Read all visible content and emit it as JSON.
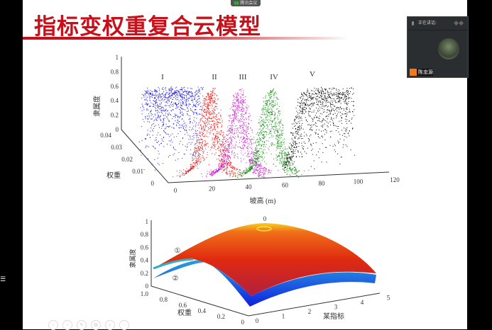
{
  "meeting_bar": {
    "label": "腾讯会议"
  },
  "slide": {
    "title": "指标变权重复合云模型"
  },
  "speaker_panel": {
    "status": "正在讲话:",
    "name": "陈忠源"
  },
  "figure_top": {
    "z_label": "隶属度",
    "z_ticks": [
      "0",
      "0.2",
      "0.4",
      "0.6",
      "0.8",
      "1"
    ],
    "y_label": "权重",
    "y_ticks": [
      "0",
      "0.01",
      "0.02",
      "0.03",
      "0.04"
    ],
    "x_label": "坡高 (m)",
    "x_ticks": [
      "0",
      "20",
      "40",
      "60",
      "80",
      "100",
      "120"
    ],
    "clouds": [
      {
        "label": "I",
        "color": "#1010e0"
      },
      {
        "label": "II",
        "color": "#f01010"
      },
      {
        "label": "III",
        "color": "#d010d0"
      },
      {
        "label": "IV",
        "color": "#109010"
      },
      {
        "label": "V",
        "color": "#000000"
      }
    ]
  },
  "figure_bottom": {
    "z_label": "隶属度",
    "z_ticks": [
      "0",
      "0.2",
      "0.4",
      "0.6",
      "0.8",
      "1"
    ],
    "y_label": "权重",
    "y_ticks": [
      "0",
      "0.2",
      "0.4",
      "0.6",
      "0.8",
      "1.0"
    ],
    "x_label": "某指标",
    "x_ticks": [
      "0",
      "1",
      "2",
      "3",
      "4",
      "5"
    ],
    "peak_label": "0",
    "surface_labels": [
      "①",
      "②"
    ]
  },
  "toolbar": {
    "icons": [
      "prev-icon",
      "next-icon",
      "pen-icon",
      "copy-icon",
      "zoom-icon",
      "more-icon"
    ]
  }
}
